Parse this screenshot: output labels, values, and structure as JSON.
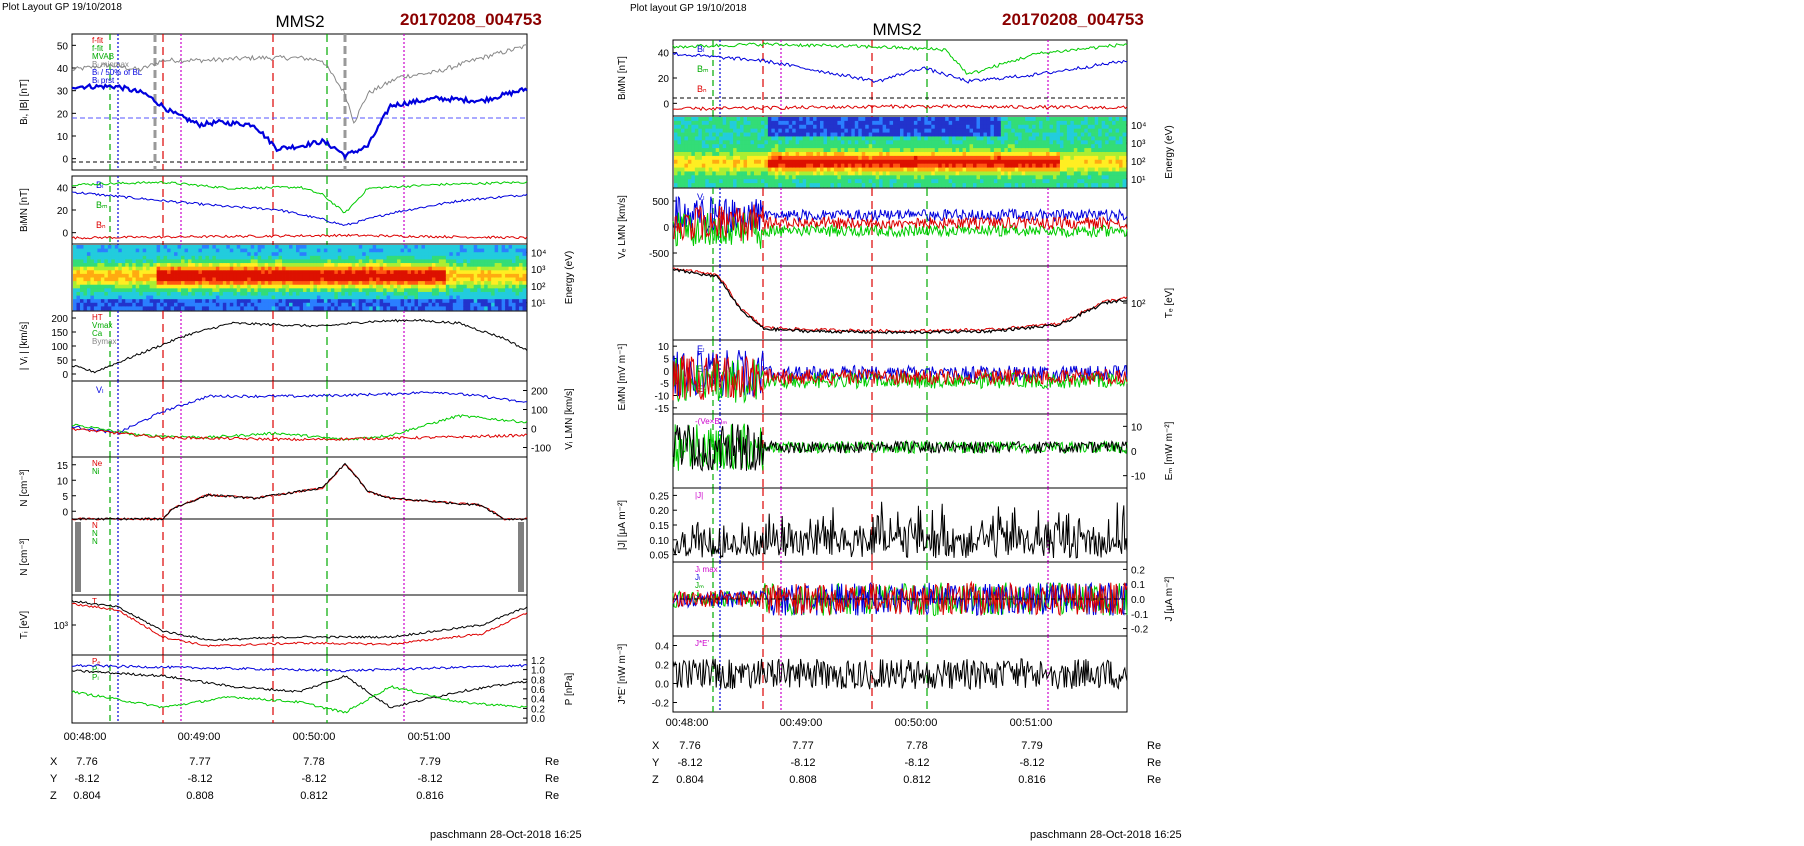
{
  "left": {
    "layout_label": "Plot Layout GP 19/10/2018",
    "spacecraft": "MMS2",
    "event_id": "20170208_004753",
    "footer": "paschmann 28-Oct-2018 16:25",
    "time_ticks": [
      "00:48:00",
      "00:49:00",
      "00:50:00",
      "00:51:00"
    ],
    "position_rows": [
      {
        "axis": "X",
        "values": [
          "7.76",
          "7.77",
          "7.78",
          "7.79"
        ],
        "unit": "Re"
      },
      {
        "axis": "Y",
        "values": [
          "-8.12",
          "-8.12",
          "-8.12",
          "-8.12"
        ],
        "unit": "Re"
      },
      {
        "axis": "Z",
        "values": [
          "0.804",
          "0.808",
          "0.812",
          "0.816"
        ],
        "unit": "Re"
      }
    ],
    "panels": [
      {
        "key": "b",
        "ylabel": "Bₗ, |B| [nT]",
        "ticks": [
          "50",
          "40",
          "30",
          "20",
          "10",
          "0"
        ],
        "legend": [
          "f-fit",
          "f-fit",
          "MVAB",
          "Bₗ minmax",
          "Bₗ / 50% of BL",
          "Bₗ prst"
        ]
      },
      {
        "key": "blmn",
        "ylabel": "BₗMN [nT]",
        "ticks": [
          "40",
          "20",
          "0"
        ],
        "labels": [
          "Bₗ",
          "Bₘ",
          "Bₙ"
        ]
      },
      {
        "key": "ispec",
        "ylabel": "Energy (eV)",
        "ticks": [
          "10⁴",
          "10³",
          "10²",
          "10¹"
        ]
      },
      {
        "key": "vi",
        "ylabel": "| Vᵢ | [km/s]",
        "ticks": [
          "200",
          "150",
          "100",
          "50",
          "0"
        ],
        "legend": [
          "HT",
          "Vmax",
          "Ca",
          "Bymax"
        ]
      },
      {
        "key": "vilmn",
        "ylabel": "Vᵢ LMN [km/s]",
        "ticks": [
          "200",
          "100",
          "0",
          "-100"
        ],
        "labels": [
          "Vₗ"
        ]
      },
      {
        "key": "n",
        "ylabel": "N [cm⁻³]",
        "ticks": [
          "15",
          "10",
          "5",
          "0"
        ],
        "legend": [
          "Ne",
          "Ni"
        ]
      },
      {
        "key": "nlmn",
        "ylabel": "N [cm⁻³]",
        "ticks": [],
        "legend": [
          "N",
          "N",
          "N"
        ]
      },
      {
        "key": "ti",
        "ylabel": "Tᵢ [eV]",
        "ticks": [
          "10³"
        ],
        "legend": [
          "T"
        ]
      },
      {
        "key": "p",
        "ylabel": "P [nPa]",
        "ticks": [
          "1.2",
          "1.0",
          "0.8",
          "0.6",
          "0.4",
          "0.2",
          "0.0"
        ],
        "legend": [
          "Pₑ",
          "Pᵢ",
          "Pₗ"
        ]
      }
    ]
  },
  "right": {
    "layout_label": "Plot layout GP 19/10/2018",
    "spacecraft": "MMS2",
    "event_id": "20170208_004753",
    "footer": "paschmann 28-Oct-2018 16:25",
    "time_ticks": [
      "00:48:00",
      "00:49:00",
      "00:50:00",
      "00:51:00"
    ],
    "position_rows": [
      {
        "axis": "X",
        "values": [
          "7.76",
          "7.77",
          "7.78",
          "7.79"
        ],
        "unit": "Re"
      },
      {
        "axis": "Y",
        "values": [
          "-8.12",
          "-8.12",
          "-8.12",
          "-8.12"
        ],
        "unit": "Re"
      },
      {
        "axis": "Z",
        "values": [
          "0.804",
          "0.808",
          "0.812",
          "0.816"
        ],
        "unit": "Re"
      }
    ],
    "panels": [
      {
        "key": "blmn",
        "ylabel": "BₗMN [nT]",
        "ticks": [
          "40",
          "20",
          "0"
        ],
        "labels": [
          "Bₗ",
          "Bₘ",
          "Bₙ"
        ]
      },
      {
        "key": "espec",
        "ylabel": "Energy (eV)",
        "ticks": [
          "10⁴",
          "10³",
          "10²",
          "10¹"
        ]
      },
      {
        "key": "ve",
        "ylabel": "Vₑ LMN [km/s]",
        "ticks": [
          "500",
          "0",
          "-500"
        ],
        "labels": [
          "Vₗ"
        ]
      },
      {
        "key": "te",
        "ylabel": "Tₑ [eV]",
        "ticks": [
          "10²"
        ]
      },
      {
        "key": "e",
        "ylabel": "EₗMN [mV m⁻¹]",
        "ticks": [
          "10",
          "5",
          "0",
          "-5",
          "-10",
          "-15"
        ],
        "labels": [
          "Eₗ",
          "Eₘ",
          "Eₙ"
        ]
      },
      {
        "key": "em",
        "ylabel": "Eₘ [mW m⁻²]",
        "ticks": [
          "10",
          "0",
          "-10"
        ],
        "legend": [
          "-(Ve×B)ₘ"
        ]
      },
      {
        "key": "jmag",
        "ylabel": "|J| [μA m⁻²]",
        "ticks": [
          "0.25",
          "0.20",
          "0.15",
          "0.10",
          "0.05"
        ],
        "legend": [
          "|J|"
        ]
      },
      {
        "key": "jlmn",
        "ylabel": "J [μA m⁻²]",
        "ticks": [
          "0.2",
          "0.1",
          "0.0",
          "-0.1",
          "-0.2"
        ],
        "legend": [
          "Jₗ max",
          "Jₗ",
          "Jₘ",
          "Jₙ"
        ]
      },
      {
        "key": "jdote",
        "ylabel": "J*E' [nW m⁻³]",
        "ticks": [
          "0.4",
          "0.2",
          "0.0",
          "-0.2"
        ],
        "legend": [
          "J*E'"
        ]
      }
    ]
  },
  "chart_data": [
    {
      "type": "line",
      "title": "MMS2",
      "subtitle": "20170208_004753",
      "xlabel": "",
      "x_range": [
        "00:47:35",
        "00:51:40"
      ],
      "panels": [
        {
          "name": "Bₗ, |B|",
          "ylabel": "Bₗ, |B| [nT]",
          "ylim": [
            -2,
            55
          ],
          "series": [
            {
              "name": "|B|",
              "color": "#888888",
              "t": [
                0,
                0.08,
                0.15,
                0.2,
                0.3,
                0.4,
                0.5,
                0.55,
                0.6,
                0.62,
                0.65,
                0.72,
                0.8,
                0.9,
                1
              ],
              "values": [
                40,
                42,
                40,
                44,
                44,
                45,
                45,
                44,
                30,
                18,
                30,
                37,
                39,
                45,
                50
              ]
            },
            {
              "name": "Bₗ",
              "color": "#0000dd",
              "t": [
                0,
                0.1,
                0.16,
                0.22,
                0.28,
                0.32,
                0.4,
                0.45,
                0.5,
                0.55,
                0.58,
                0.6,
                0.65,
                0.7,
                0.8,
                0.9,
                1
              ],
              "values": [
                33,
                33,
                30,
                22,
                17,
                18,
                17,
                7,
                8,
                10,
                7,
                4,
                8,
                25,
                28,
                27,
                32
              ]
            }
          ]
        },
        {
          "name": "BₗMN",
          "ylabel": "BₗMN [nT]",
          "ylim": [
            -10,
            45
          ],
          "series": [
            {
              "name": "Bₗ",
              "color": "#0000dd",
              "t": [
                0,
                0.2,
                0.35,
                0.45,
                0.55,
                0.6,
                0.7,
                0.85,
                1
              ],
              "values": [
                32,
                25,
                20,
                18,
                10,
                5,
                15,
                25,
                30
              ]
            },
            {
              "name": "Bₘ",
              "color": "#00cc00",
              "t": [
                0,
                0.2,
                0.35,
                0.5,
                0.55,
                0.6,
                0.65,
                0.8,
                1
              ],
              "values": [
                38,
                40,
                35,
                36,
                30,
                15,
                35,
                38,
                40
              ]
            },
            {
              "name": "Bₙ",
              "color": "#dd0000",
              "t": [
                0,
                0.3,
                0.6,
                1
              ],
              "values": [
                -5,
                -4,
                -3,
                -5
              ]
            }
          ]
        },
        {
          "name": "|Vᵢ|",
          "ylabel": "| Vᵢ | [km/s]",
          "ylim": [
            0,
            230
          ],
          "series": [
            {
              "name": "|Vᵢ|",
              "color": "#000000",
              "t": [
                0,
                0.05,
                0.1,
                0.15,
                0.25,
                0.35,
                0.45,
                0.55,
                0.65,
                0.75,
                0.85,
                0.95,
                1
              ],
              "values": [
                50,
                30,
                60,
                90,
                150,
                190,
                185,
                180,
                195,
                200,
                190,
                140,
                100
              ]
            }
          ]
        },
        {
          "name": "Vᵢ LMN",
          "ylabel": "Vᵢ LMN [km/s]",
          "ylim": [
            -130,
            220
          ],
          "series": [
            {
              "name": "Vₗ",
              "color": "#0000dd",
              "t": [
                0,
                0.1,
                0.2,
                0.3,
                0.5,
                0.7,
                0.8,
                0.9,
                1
              ],
              "values": [
                10,
                -20,
                80,
                150,
                150,
                160,
                170,
                150,
                120
              ]
            },
            {
              "name": "Vₘ",
              "color": "#00cc00",
              "t": [
                0,
                0.15,
                0.3,
                0.45,
                0.6,
                0.7,
                0.85,
                1
              ],
              "values": [
                20,
                -30,
                -40,
                -20,
                -50,
                -30,
                60,
                30
              ]
            },
            {
              "name": "Vₙ",
              "color": "#dd0000",
              "t": [
                0,
                0.2,
                0.5,
                0.8,
                1
              ],
              "values": [
                0,
                -40,
                -50,
                -40,
                -30
              ]
            }
          ]
        },
        {
          "name": "N",
          "ylabel": "N [cm⁻³]",
          "ylim": [
            0,
            18
          ],
          "series": [
            {
              "name": "Ne",
              "color": "#dd0000",
              "t": [
                0,
                0.2,
                0.22,
                0.3,
                0.4,
                0.5,
                0.55,
                0.6,
                0.62,
                0.65,
                0.7,
                0.8,
                0.9,
                0.95,
                1
              ],
              "values": [
                0,
                0,
                3,
                7,
                6,
                8,
                9,
                16,
                13,
                8,
                6,
                5,
                4,
                0,
                0
              ]
            },
            {
              "name": "Ni",
              "color": "#000000",
              "t": [
                0,
                0.2,
                0.22,
                0.3,
                0.4,
                0.5,
                0.55,
                0.6,
                0.62,
                0.65,
                0.7,
                0.8,
                0.9,
                0.95,
                1
              ],
              "values": [
                0,
                0,
                3,
                7,
                6,
                8,
                9,
                16,
                13,
                8,
                6,
                5,
                4,
                0,
                0
              ]
            }
          ]
        },
        {
          "name": "Tᵢ",
          "ylabel": "Tᵢ [eV]",
          "ylim": [
            0,
            1
          ],
          "series": [
            {
              "name": "T",
              "color": "#000000",
              "t": [
                0,
                0.1,
                0.2,
                0.3,
                0.5,
                0.7,
                0.9,
                1
              ],
              "values": [
                0.9,
                0.8,
                0.4,
                0.25,
                0.3,
                0.3,
                0.5,
                0.8
              ]
            },
            {
              "name": "T∥",
              "color": "#dd0000",
              "t": [
                0,
                0.1,
                0.2,
                0.3,
                0.5,
                0.7,
                0.9,
                1
              ],
              "values": [
                0.85,
                0.75,
                0.3,
                0.15,
                0.2,
                0.18,
                0.35,
                0.7
              ]
            }
          ]
        },
        {
          "name": "P",
          "ylabel": "P [nPa]",
          "ylim": [
            0,
            1.3
          ],
          "series": [
            {
              "name": "Pₑ",
              "color": "#0000dd",
              "t": [
                0,
                0.3,
                0.6,
                1
              ],
              "values": [
                1.1,
                1.05,
                1.0,
                1.1
              ]
            },
            {
              "name": "Pᵢ",
              "color": "#000000",
              "t": [
                0,
                0.2,
                0.35,
                0.5,
                0.6,
                0.7,
                0.85,
                1
              ],
              "values": [
                1.0,
                0.9,
                0.7,
                0.6,
                0.9,
                0.3,
                0.6,
                0.8
              ]
            },
            {
              "name": "Pₗ",
              "color": "#00cc00",
              "t": [
                0,
                0.2,
                0.35,
                0.5,
                0.6,
                0.7,
                0.85,
                1
              ],
              "values": [
                0.6,
                0.3,
                0.5,
                0.4,
                0.2,
                0.7,
                0.4,
                0.3
              ]
            }
          ]
        }
      ]
    },
    {
      "type": "line",
      "title": "MMS2",
      "subtitle": "20170208_004753",
      "xlabel": "",
      "x_range": [
        "00:47:35",
        "00:51:40"
      ],
      "panels": [
        {
          "name": "BₗMN",
          "ylabel": "BₗMN [nT]",
          "ylim": [
            -10,
            45
          ],
          "series": [
            {
              "name": "Bₗ",
              "color": "#0000dd",
              "t": [
                0,
                0.2,
                0.45,
                0.55,
                0.65,
                0.8,
                1
              ],
              "values": [
                35,
                30,
                15,
                25,
                15,
                20,
                30
              ]
            },
            {
              "name": "Bₘ",
              "color": "#00cc00",
              "t": [
                0,
                0.2,
                0.45,
                0.6,
                0.65,
                0.8,
                1
              ],
              "values": [
                40,
                42,
                40,
                38,
                20,
                35,
                42
              ]
            },
            {
              "name": "Bₙ",
              "color": "#dd0000",
              "t": [
                0,
                0.5,
                1
              ],
              "values": [
                -5,
                -3,
                -4
              ]
            }
          ]
        },
        {
          "name": "Tₑ",
          "ylabel": "Tₑ [eV]",
          "ylim": [
            0,
            1
          ],
          "series": [
            {
              "name": "Tₑ",
              "color": "#000000",
              "t": [
                0,
                0.1,
                0.15,
                0.2,
                0.3,
                0.5,
                0.7,
                0.85,
                0.95,
                1
              ],
              "values": [
                0.95,
                0.85,
                0.4,
                0.15,
                0.12,
                0.1,
                0.12,
                0.2,
                0.5,
                0.55
              ]
            }
          ]
        },
        {
          "name": "|J|",
          "ylabel": "|J| [μA m⁻²]",
          "ylim": [
            0,
            0.27
          ],
          "series": []
        }
      ]
    }
  ]
}
